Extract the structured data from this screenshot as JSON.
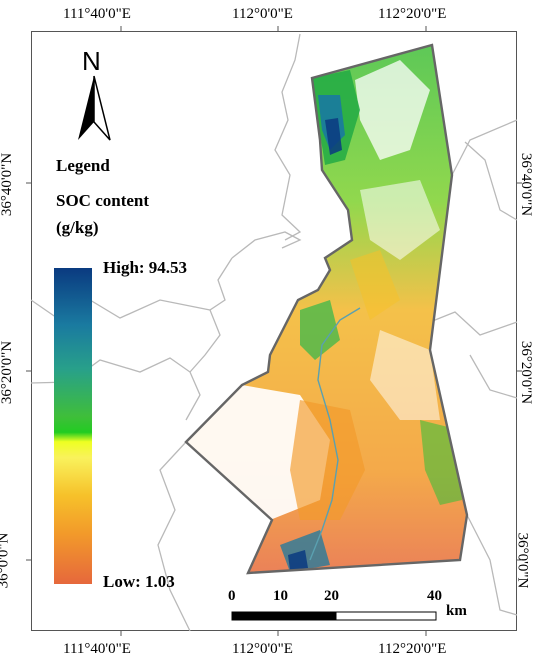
{
  "graticule": {
    "top": [
      "111°40'0\"E",
      "112°0'0\"E",
      "112°20'0\"E"
    ],
    "bottom": [
      "111°40'0\"E",
      "112°0'0\"E",
      "112°20'0\"E"
    ],
    "left": [
      "36°40'0\"N",
      "36°20'0\"N",
      "36°0'0\"N"
    ],
    "right": [
      "36°40'0\"N",
      "36°20'0\"N",
      "36°0'0\"N"
    ]
  },
  "north_arrow": {
    "letter": "N",
    "icon": "north-arrow-icon"
  },
  "legend": {
    "title": "Legend",
    "variable": "SOC content",
    "unit": "(g/kg)",
    "high_label": "High: 94.53",
    "low_label": "Low: 1.03",
    "ramp_colors": [
      "#0a3a80",
      "#1a7aa0",
      "#28a08a",
      "#3fbe3a",
      "#eeff22",
      "#f6c12a",
      "#f29a2a",
      "#e6683c"
    ]
  },
  "scale_bar": {
    "ticks": [
      "0",
      "10",
      "20",
      "40"
    ],
    "unit": "km"
  },
  "colors": {
    "boundary": "#666666",
    "admin_lines": "#b9b9b9",
    "river": "#5aa0b0"
  }
}
